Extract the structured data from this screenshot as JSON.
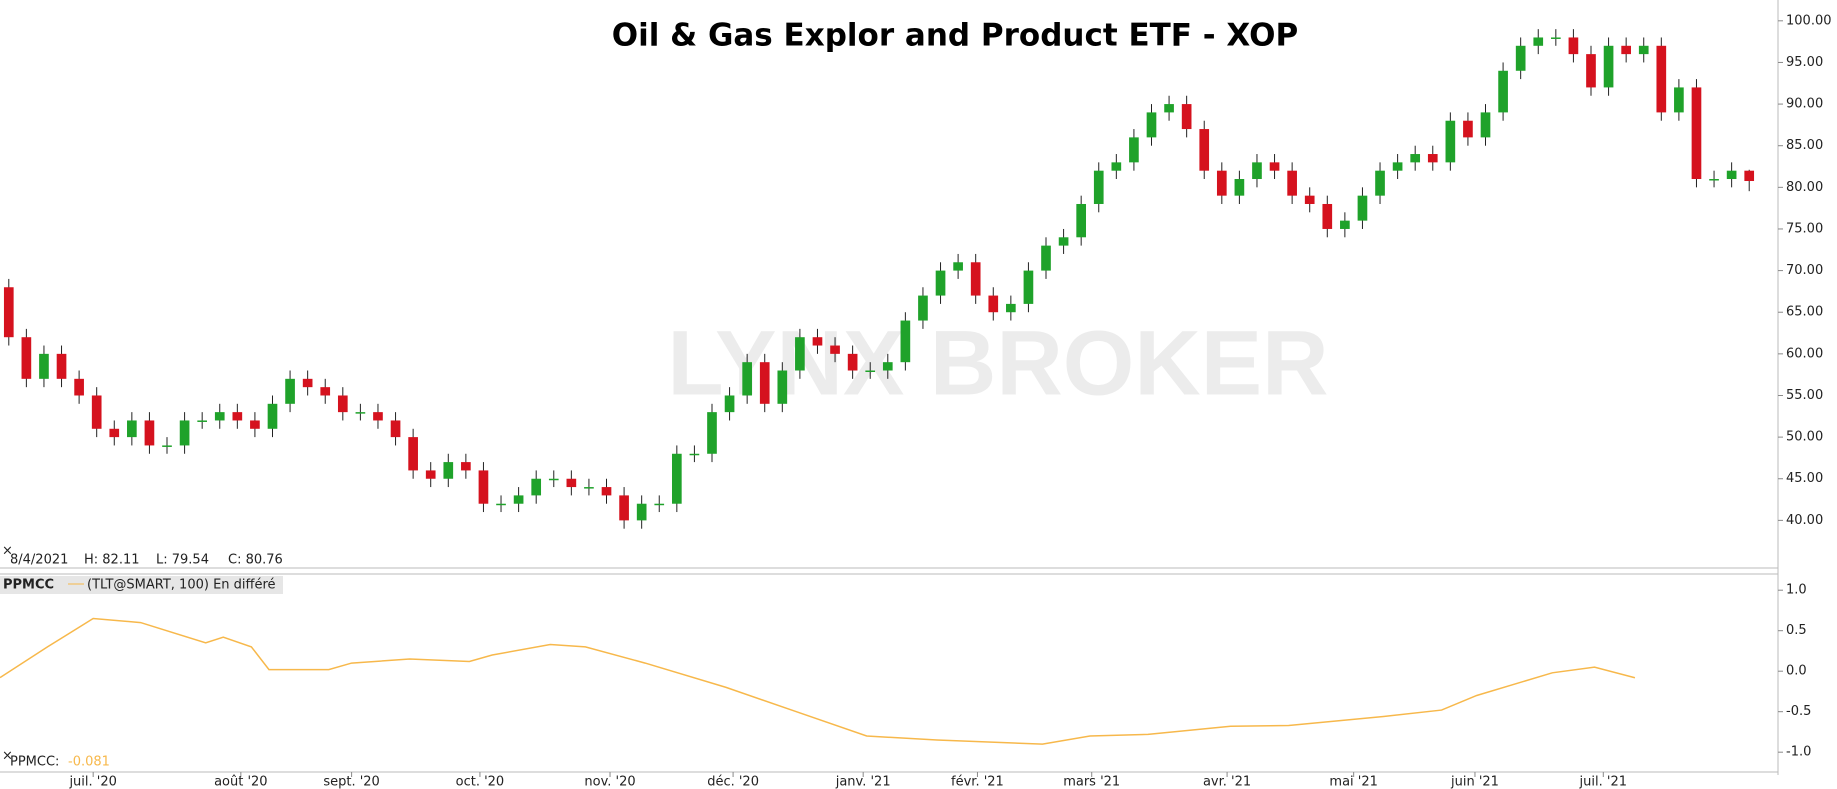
{
  "chart_data": [
    {
      "type": "candlestick",
      "title": "Oil & Gas Explor and Product ETF - XOP",
      "watermark": "LYNX BROKER",
      "info": [
        "8/4/2021",
        "H: 82.11",
        "L: 79.54",
        "C: 80.76"
      ],
      "up_color": "#1fa22a",
      "down_color": "#d5121e",
      "open": [
        68,
        62,
        57,
        60,
        57,
        55,
        51,
        50,
        52,
        49,
        49,
        52,
        52,
        53,
        52,
        51,
        54,
        57,
        56,
        55,
        53,
        53,
        52,
        50,
        46,
        45,
        47,
        46,
        42,
        42,
        43,
        45,
        45,
        44,
        44,
        43,
        40,
        42,
        42,
        48,
        48,
        53,
        55,
        59,
        54,
        58,
        62,
        61,
        60,
        58,
        58,
        59,
        64,
        67,
        70,
        71,
        67,
        65,
        66,
        70,
        73,
        74,
        78,
        82,
        83,
        86,
        89,
        90,
        87,
        82,
        79,
        81,
        83,
        82,
        79,
        78,
        75,
        76,
        79,
        82,
        83,
        84,
        83,
        88,
        86,
        89,
        94,
        97,
        98,
        98,
        96,
        92,
        97,
        96,
        97,
        89,
        92,
        81,
        81,
        82
      ],
      "high": [
        69,
        63,
        61,
        61,
        58,
        56,
        52,
        53,
        53,
        50,
        53,
        53,
        54,
        54,
        53,
        55,
        58,
        58,
        57,
        56,
        54,
        54,
        53,
        51,
        47,
        48,
        48,
        47,
        43,
        44,
        46,
        46,
        46,
        45,
        45,
        44,
        43,
        43,
        49,
        49,
        54,
        56,
        60,
        60,
        59,
        63,
        63,
        62,
        61,
        59,
        60,
        65,
        68,
        71,
        72,
        72,
        68,
        67,
        71,
        74,
        75,
        79,
        83,
        84,
        87,
        90,
        91,
        91,
        88,
        83,
        82,
        84,
        84,
        83,
        80,
        79,
        77,
        80,
        83,
        84,
        85,
        85,
        89,
        89,
        90,
        95,
        98,
        99,
        99,
        99,
        97,
        98,
        98,
        98,
        98,
        93,
        93,
        82,
        83,
        82.11
      ],
      "low": [
        61,
        56,
        56,
        56,
        54,
        50,
        49,
        49,
        48,
        48,
        48,
        51,
        51,
        51,
        50,
        50,
        53,
        55,
        54,
        52,
        52,
        51,
        49,
        45,
        44,
        44,
        45,
        41,
        41,
        41,
        42,
        44,
        43,
        43,
        42,
        39,
        39,
        41,
        41,
        47,
        47,
        52,
        54,
        53,
        53,
        57,
        60,
        59,
        57,
        57,
        57,
        58,
        63,
        66,
        69,
        66,
        64,
        64,
        65,
        69,
        72,
        73,
        77,
        81,
        82,
        85,
        88,
        86,
        81,
        78,
        78,
        80,
        81,
        78,
        77,
        74,
        74,
        75,
        78,
        81,
        82,
        82,
        82,
        85,
        85,
        88,
        93,
        96,
        97,
        95,
        91,
        91,
        95,
        95,
        88,
        88,
        80,
        80,
        80,
        79.54
      ],
      "close": [
        62,
        57,
        60,
        57,
        55,
        51,
        50,
        52,
        49,
        49,
        52,
        52,
        53,
        52,
        51,
        54,
        57,
        56,
        55,
        53,
        53,
        52,
        50,
        46,
        45,
        47,
        46,
        42,
        42,
        43,
        45,
        45,
        44,
        44,
        43,
        40,
        42,
        42,
        48,
        48,
        53,
        55,
        59,
        54,
        58,
        62,
        61,
        60,
        58,
        58,
        59,
        64,
        67,
        70,
        71,
        67,
        65,
        66,
        70,
        73,
        74,
        78,
        82,
        83,
        86,
        89,
        90,
        87,
        82,
        79,
        81,
        83,
        82,
        79,
        78,
        75,
        76,
        79,
        82,
        83,
        84,
        83,
        88,
        86,
        89,
        94,
        97,
        98,
        98,
        96,
        92,
        97,
        96,
        97,
        89,
        92,
        81,
        81,
        82,
        80.76
      ],
      "xlim": [
        -0.5,
        99.5
      ],
      "ylim": [
        34.4,
        102.5
      ],
      "xticks": [
        {
          "value": 4.8,
          "label": "juil. '20"
        },
        {
          "value": 13.2,
          "label": "août '20"
        },
        {
          "value": 19.5,
          "label": "sept. '20"
        },
        {
          "value": 26.8,
          "label": "oct. '20"
        },
        {
          "value": 34.2,
          "label": "nov. '20"
        },
        {
          "value": 41.2,
          "label": "déc. '20"
        },
        {
          "value": 48.6,
          "label": "janv. '21"
        },
        {
          "value": 55.1,
          "label": "févr. '21"
        },
        {
          "value": 61.6,
          "label": "mars '21"
        },
        {
          "value": 69.3,
          "label": "avr. '21"
        },
        {
          "value": 76.5,
          "label": "mai '21"
        },
        {
          "value": 83.4,
          "label": "juin '21"
        },
        {
          "value": 90.7,
          "label": "juil. '21"
        }
      ],
      "yticks": [
        {
          "value": 40,
          "label": "40.00"
        },
        {
          "value": 45,
          "label": "45.00"
        },
        {
          "value": 50,
          "label": "50.00"
        },
        {
          "value": 55,
          "label": "55.00"
        },
        {
          "value": 60,
          "label": "60.00"
        },
        {
          "value": 65,
          "label": "65.00"
        },
        {
          "value": 70,
          "label": "70.00"
        },
        {
          "value": 75,
          "label": "75.00"
        },
        {
          "value": 80,
          "label": "80.00"
        },
        {
          "value": 85,
          "label": "85.00"
        },
        {
          "value": 90,
          "label": "90.00"
        },
        {
          "value": 95,
          "label": "95.00"
        },
        {
          "value": 100,
          "label": "100.00"
        }
      ]
    },
    {
      "type": "line",
      "title": "PPMCC",
      "subtitle": "(TLT@SMART, 100) En différé",
      "current_label": "PPMCC:",
      "current_value": -0.081,
      "xlim": [
        -0.5,
        99.5
      ],
      "ylim": [
        -1.22,
        1.2
      ],
      "yticks": [
        {
          "value": 1,
          "label": "1.0"
        },
        {
          "value": 0.5,
          "label": "0.5"
        },
        {
          "value": 0,
          "label": "0.0"
        },
        {
          "value": -0.5,
          "label": "-0.5"
        },
        {
          "value": -1,
          "label": "-1.0"
        }
      ],
      "series": [
        {
          "name": "PPMCC",
          "color": "#f7b84b",
          "x": [
            -0.5,
            2.2,
            4.8,
            7.5,
            11.2,
            12.2,
            13.8,
            14.8,
            18.2,
            19.5,
            22.8,
            26.2,
            27.5,
            30.8,
            32.8,
            36.2,
            40.8,
            44.8,
            48.8,
            52.8,
            58.8,
            61.5,
            64.8,
            69.5,
            72.8,
            78.2,
            81.5,
            83.5,
            87.8,
            90.2,
            92.5
          ],
          "values": [
            -0.08,
            0.3,
            0.65,
            0.6,
            0.35,
            0.42,
            0.3,
            0.02,
            0.02,
            0.1,
            0.15,
            0.12,
            0.2,
            0.33,
            0.3,
            0.1,
            -0.2,
            -0.5,
            -0.8,
            -0.85,
            -0.9,
            -0.8,
            -0.78,
            -0.68,
            -0.67,
            -0.56,
            -0.48,
            -0.3,
            -0.02,
            0.05,
            -0.081
          ]
        }
      ]
    }
  ]
}
